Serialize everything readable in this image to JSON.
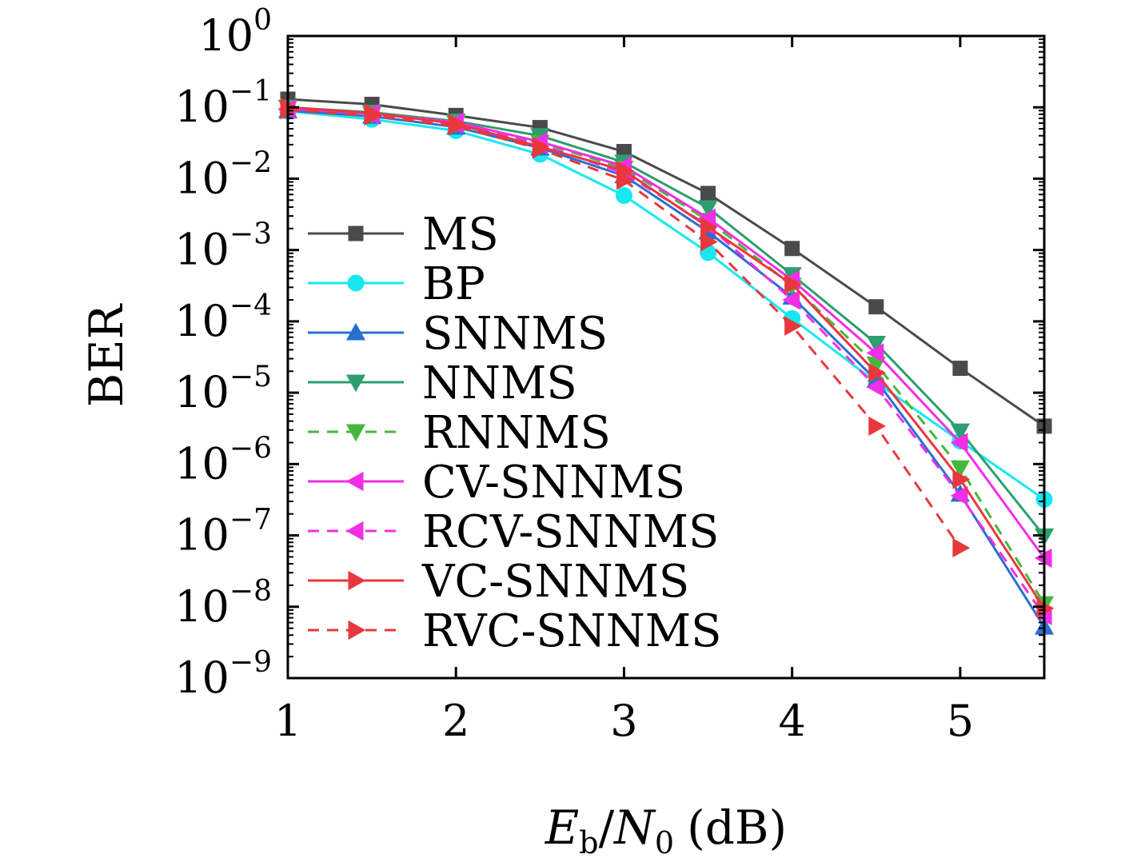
{
  "chart_data": {
    "type": "line",
    "title": "",
    "xlabel_parts": {
      "sym": "E",
      "sub": "b",
      "sep": "/",
      "sym2": "N",
      "sub2": "0",
      "unit": "(dB)"
    },
    "ylabel": "BER",
    "xlim": [
      1,
      5.5
    ],
    "ylim_exponent": [
      -9,
      0
    ],
    "yscale": "log",
    "grid": false,
    "legend_position": "left-center",
    "x_ticks": [
      "1",
      "2",
      "3",
      "4",
      "5"
    ],
    "y_ticks": [
      {
        "base": "10",
        "exp": "0"
      },
      {
        "base": "10",
        "exp": "−1"
      },
      {
        "base": "10",
        "exp": "−2"
      },
      {
        "base": "10",
        "exp": "−3"
      },
      {
        "base": "10",
        "exp": "−4"
      },
      {
        "base": "10",
        "exp": "−5"
      },
      {
        "base": "10",
        "exp": "−6"
      },
      {
        "base": "10",
        "exp": "−7"
      },
      {
        "base": "10",
        "exp": "−8"
      },
      {
        "base": "10",
        "exp": "−9"
      }
    ],
    "x": [
      1,
      1.5,
      2,
      2.5,
      3,
      3.5,
      4,
      4.5,
      5,
      5.5
    ],
    "series": [
      {
        "name": "MS",
        "color": "#4a4a4a",
        "marker": "square",
        "dash": false,
        "values": [
          0.13,
          0.11,
          0.077,
          0.052,
          0.024,
          0.0062,
          0.00105,
          0.00016,
          2.2e-05,
          3.4e-06
        ]
      },
      {
        "name": "BP",
        "color": "#17e8f0",
        "marker": "circle",
        "dash": false,
        "values": [
          0.088,
          0.068,
          0.047,
          0.022,
          0.0058,
          0.00092,
          0.00011,
          1.4e-05,
          2.1e-06,
          3.2e-07
        ]
      },
      {
        "name": "SNNMS",
        "color": "#2a6fd1",
        "marker": "triangle-up",
        "dash": false,
        "values": [
          0.09,
          0.075,
          0.053,
          0.027,
          0.011,
          0.0018,
          0.00022,
          1.5e-05,
          3.8e-07,
          5.2e-09
        ]
      },
      {
        "name": "NNMS",
        "color": "#2e9e6e",
        "marker": "triangle-down",
        "dash": false,
        "values": [
          0.1,
          0.085,
          0.064,
          0.04,
          0.017,
          0.0039,
          0.00045,
          4.9e-05,
          2.9e-06,
          9.8e-08
        ]
      },
      {
        "name": "RNNMS",
        "color": "#45b83c",
        "marker": "triangle-down",
        "dash": true,
        "values": [
          0.098,
          0.08,
          0.06,
          0.032,
          0.014,
          0.0026,
          0.00032,
          2.5e-05,
          8.8e-07,
          1.1e-08
        ]
      },
      {
        "name": "CV-SNNMS",
        "color": "#f22ee6",
        "marker": "triangle-left",
        "dash": false,
        "values": [
          0.095,
          0.082,
          0.062,
          0.033,
          0.015,
          0.0028,
          0.00038,
          3.6e-05,
          2e-06,
          4.8e-08
        ]
      },
      {
        "name": "RCV-SNNMS",
        "color": "#f22ee6",
        "marker": "triangle-left",
        "dash": true,
        "values": [
          0.093,
          0.078,
          0.058,
          0.03,
          0.012,
          0.0022,
          0.0002,
          1.2e-05,
          3.6e-07,
          7.5e-09
        ]
      },
      {
        "name": "VC-SNNMS",
        "color": "#e8383d",
        "marker": "triangle-right",
        "dash": false,
        "values": [
          0.1,
          0.083,
          0.059,
          0.028,
          0.013,
          0.0021,
          0.00033,
          1.9e-05,
          6.1e-07,
          9.5e-09
        ]
      },
      {
        "name": "RVC-SNNMS",
        "color": "#e8383d",
        "marker": "triangle-right",
        "dash": true,
        "values": [
          0.092,
          0.076,
          0.055,
          0.026,
          0.0095,
          0.0013,
          8.6e-05,
          3.4e-06,
          6.7e-08,
          null
        ]
      }
    ]
  }
}
